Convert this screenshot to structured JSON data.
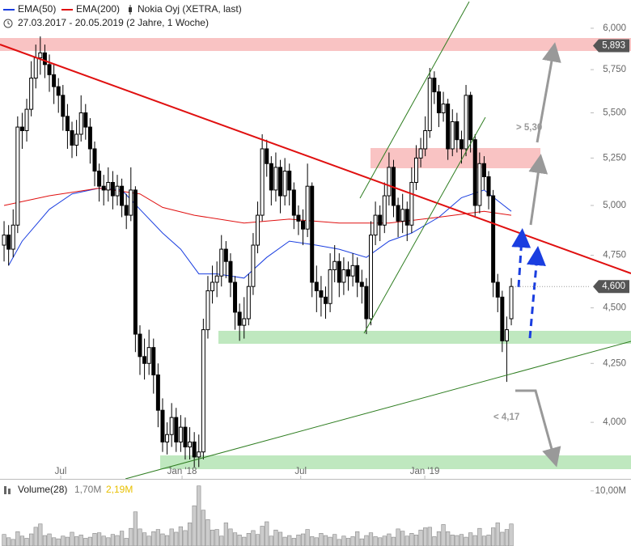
{
  "chart_data": {
    "type": "candlestick",
    "title": "Nokia Oyj (XETRA, last)",
    "subtitle": "27.03.2017 - 20.05.2019 (2 Jahre, 1 Woche)",
    "log_scale": true,
    "ylim": [
      3.774,
      6.177
    ],
    "yticks": [
      {
        "value": 4,
        "label": "4,000"
      },
      {
        "value": 4.25,
        "label": "4,250"
      },
      {
        "value": 4.5,
        "label": "4,500"
      },
      {
        "value": 4.75,
        "label": "4,750"
      },
      {
        "value": 5,
        "label": "5,000"
      },
      {
        "value": 5.25,
        "label": "5,250"
      },
      {
        "value": 5.5,
        "label": "5,500"
      },
      {
        "value": 5.75,
        "label": "5,750"
      },
      {
        "value": 6,
        "label": "6,000"
      }
    ],
    "xlim": [
      -0.9,
      129.5
    ],
    "xticks": [
      {
        "value": 12.5,
        "label": "Jul"
      },
      {
        "value": 39.3,
        "label": "Jan '18"
      },
      {
        "value": 65.5,
        "label": "Jul"
      },
      {
        "value": 92.9,
        "label": "Jan '19"
      }
    ],
    "up_color": "#ffffff",
    "down_color": "#000000",
    "open": [
      4.8,
      4.85,
      4.78,
      4.9,
      5.42,
      5.4,
      5.52,
      5.7,
      5.82,
      5.85,
      5.78,
      5.72,
      5.65,
      5.6,
      5.48,
      5.4,
      5.32,
      5.38,
      5.5,
      5.42,
      5.3,
      5.18,
      5.1,
      5.08,
      5.12,
      5.05,
      5.1,
      5.0,
      4.95,
      5.08,
      4.38,
      4.28,
      4.25,
      4.32,
      4.2,
      4.05,
      3.92,
      3.95,
      4.02,
      3.92,
      3.98,
      3.9,
      3.92,
      3.86,
      3.88,
      4.4,
      4.58,
      4.62,
      4.65,
      4.78,
      4.72,
      4.62,
      4.48,
      4.42,
      4.45,
      4.6,
      4.8,
      4.95,
      5.3,
      5.22,
      5.08,
      5.2,
      5.05,
      5.18,
      5.08,
      4.95,
      4.92,
      4.88,
      5.1,
      4.62,
      4.58,
      4.55,
      4.52,
      4.68,
      4.72,
      4.62,
      4.68,
      4.65,
      4.7,
      4.62,
      4.6,
      4.45,
      4.85,
      4.95,
      4.9,
      5.05,
      5.2,
      5.0,
      4.92,
      4.98,
      4.9,
      5.12,
      5.25,
      5.3,
      5.4,
      5.7,
      5.62,
      5.5,
      5.55,
      5.3,
      5.45,
      5.35,
      5.3,
      5.6,
      5.35,
      5.0,
      5.22,
      5.15,
      5.05,
      4.62,
      4.55,
      4.35,
      4.45
    ],
    "high": [
      4.92,
      4.9,
      4.98,
      5.48,
      5.5,
      5.58,
      5.8,
      5.9,
      5.95,
      5.9,
      5.84,
      5.78,
      5.7,
      5.66,
      5.55,
      5.45,
      5.46,
      5.6,
      5.55,
      5.47,
      5.34,
      5.22,
      5.16,
      5.2,
      5.18,
      5.16,
      5.14,
      5.06,
      5.2,
      5.1,
      4.42,
      4.36,
      4.4,
      4.36,
      4.25,
      4.1,
      4.0,
      4.08,
      4.06,
      4.03,
      4.02,
      3.98,
      3.96,
      3.95,
      4.45,
      4.65,
      4.7,
      4.72,
      4.85,
      4.82,
      4.76,
      4.65,
      4.52,
      4.55,
      4.66,
      4.86,
      5.02,
      5.38,
      5.35,
      5.26,
      5.28,
      5.24,
      5.25,
      5.22,
      5.12,
      5.0,
      4.98,
      5.22,
      5.12,
      4.7,
      4.65,
      4.6,
      4.76,
      4.8,
      4.76,
      4.74,
      4.72,
      4.76,
      4.74,
      4.68,
      4.64,
      4.92,
      5.02,
      5.0,
      5.12,
      5.28,
      5.24,
      5.04,
      5.06,
      5.02,
      5.2,
      5.32,
      5.36,
      5.48,
      5.76,
      5.74,
      5.66,
      5.62,
      5.58,
      5.52,
      5.5,
      5.4,
      5.66,
      5.62,
      5.38,
      5.28,
      5.26,
      5.18,
      5.08,
      4.66,
      4.58,
      4.46,
      4.64
    ],
    "low": [
      4.72,
      4.7,
      4.74,
      4.86,
      5.3,
      5.34,
      5.48,
      5.64,
      5.72,
      5.7,
      5.62,
      5.55,
      5.5,
      5.4,
      5.3,
      5.25,
      5.26,
      5.34,
      5.35,
      5.22,
      5.1,
      5.02,
      5.0,
      5.02,
      4.98,
      5.0,
      4.94,
      4.88,
      4.92,
      4.3,
      4.2,
      4.18,
      4.2,
      4.12,
      3.98,
      3.88,
      3.87,
      3.9,
      3.88,
      3.88,
      3.85,
      3.85,
      3.82,
      3.82,
      3.85,
      4.36,
      4.52,
      4.55,
      4.6,
      4.64,
      4.55,
      4.4,
      4.35,
      4.36,
      4.42,
      4.56,
      4.76,
      4.92,
      5.15,
      5.0,
      5.02,
      4.96,
      5.0,
      5.0,
      4.88,
      4.85,
      4.8,
      4.84,
      4.55,
      4.48,
      4.46,
      4.45,
      4.48,
      4.62,
      4.55,
      4.56,
      4.58,
      4.6,
      4.55,
      4.52,
      4.38,
      4.42,
      4.8,
      4.82,
      4.86,
      5.0,
      4.94,
      4.84,
      4.86,
      4.82,
      4.86,
      5.08,
      5.2,
      5.26,
      5.36,
      5.55,
      5.42,
      5.45,
      5.24,
      5.26,
      5.28,
      5.22,
      5.26,
      5.28,
      4.94,
      4.96,
      5.08,
      4.98,
      4.55,
      4.48,
      4.3,
      4.17,
      4.42
    ],
    "close": [
      4.85,
      4.78,
      4.9,
      5.42,
      5.4,
      5.52,
      5.7,
      5.82,
      5.85,
      5.78,
      5.72,
      5.65,
      5.6,
      5.48,
      5.4,
      5.32,
      5.38,
      5.5,
      5.42,
      5.3,
      5.18,
      5.1,
      5.08,
      5.12,
      5.05,
      5.1,
      5.0,
      4.95,
      5.08,
      4.38,
      4.28,
      4.25,
      4.32,
      4.2,
      4.05,
      3.92,
      3.95,
      4.02,
      3.92,
      3.98,
      3.9,
      3.92,
      3.86,
      3.88,
      4.4,
      4.58,
      4.62,
      4.65,
      4.78,
      4.72,
      4.62,
      4.48,
      4.42,
      4.45,
      4.6,
      4.8,
      4.95,
      5.3,
      5.22,
      5.08,
      5.2,
      5.05,
      5.18,
      5.08,
      4.95,
      4.92,
      4.88,
      5.1,
      4.62,
      4.58,
      4.55,
      4.52,
      4.68,
      4.72,
      4.62,
      4.68,
      4.65,
      4.7,
      4.62,
      4.6,
      4.45,
      4.85,
      4.95,
      4.9,
      5.05,
      5.2,
      5.0,
      4.92,
      4.98,
      4.9,
      5.12,
      5.25,
      5.3,
      5.4,
      5.7,
      5.62,
      5.5,
      5.55,
      5.3,
      5.45,
      5.35,
      5.3,
      5.6,
      5.35,
      5.0,
      5.22,
      5.15,
      5.05,
      4.62,
      4.55,
      4.35,
      4.4,
      4.6
    ],
    "series": [
      {
        "name": "EMA(50)",
        "color": "#1a3ee0",
        "x": [
          1,
          4,
          10,
          15,
          21,
          26,
          30,
          35,
          39,
          43,
          47,
          53,
          58,
          63,
          69,
          74,
          80,
          85,
          90,
          96,
          101,
          106,
          112
        ],
        "values": [
          4.7,
          4.82,
          4.98,
          5.06,
          5.09,
          5.08,
          4.98,
          4.86,
          4.78,
          4.66,
          4.66,
          4.64,
          4.74,
          4.82,
          4.8,
          4.78,
          4.74,
          4.82,
          4.86,
          4.94,
          5.04,
          5.08,
          4.97
        ]
      },
      {
        "name": "EMA(200)",
        "color": "#e01010",
        "x": [
          0,
          10,
          21,
          30,
          35,
          42,
          53,
          63,
          74,
          85,
          96,
          106,
          112
        ],
        "values": [
          5.0,
          5.05,
          5.09,
          5.06,
          4.99,
          4.95,
          4.91,
          4.93,
          4.91,
          4.91,
          4.94,
          4.97,
          4.95
        ]
      }
    ],
    "price_labels": [
      {
        "value": 5.893,
        "label": "5,893"
      },
      {
        "value": 4.6,
        "label": "4,600"
      }
    ],
    "annotations": [
      {
        "value": 5.3,
        "label": "> 5,30"
      },
      {
        "value": 4.17,
        "label": "< 4,17"
      }
    ],
    "volume": {
      "name": "Volume(28)",
      "color": "#cccccc",
      "ylim": [
        0,
        11.3
      ],
      "yticks": [
        {
          "value": 10,
          "label": "10,00M"
        }
      ],
      "legend_values": [
        {
          "value": 1.7,
          "label": "1,70M",
          "color": "#777777"
        },
        {
          "value": 2.19,
          "label": "2,19M",
          "color": "#e8c000"
        }
      ],
      "values": [
        2.1,
        1.5,
        1.2,
        2.6,
        1.8,
        1.4,
        2.2,
        3.4,
        4.0,
        1.9,
        2.2,
        1.5,
        1.3,
        1.8,
        1.6,
        2.5,
        1.7,
        2.0,
        1.4,
        1.6,
        2.3,
        2.4,
        1.8,
        1.5,
        2.1,
        1.9,
        2.7,
        1.4,
        3.2,
        6.2,
        3.1,
        2.4,
        1.8,
        2.6,
        3.0,
        2.2,
        1.9,
        3.1,
        2.5,
        3.5,
        2.8,
        4.2,
        7.3,
        10.9,
        6.5,
        4.8,
        2.9,
        3.0,
        1.8,
        4.2,
        3.1,
        2.4,
        2.0,
        1.6,
        2.3,
        2.8,
        2.1,
        3.6,
        4.4,
        1.8,
        2.9,
        2.5,
        1.6,
        1.9,
        1.4,
        2.0,
        2.2,
        3.0,
        1.7,
        1.5,
        2.3,
        1.9,
        1.6,
        2.1,
        1.2,
        1.8,
        1.4,
        1.7,
        2.6,
        1.3,
        1.9,
        2.4,
        1.7,
        1.5,
        1.8,
        2.2,
        1.6,
        3.1,
        2.7,
        1.8,
        2.3,
        2.0,
        2.9,
        3.3,
        3.4,
        1.7,
        2.6,
        3.9,
        2.6,
        2.0,
        1.9,
        2.1,
        1.6,
        2.4,
        1.9,
        3.2,
        1.8,
        2.0,
        3.3,
        4.2,
        2.5,
        3.0,
        4.0
      ]
    }
  }
}
